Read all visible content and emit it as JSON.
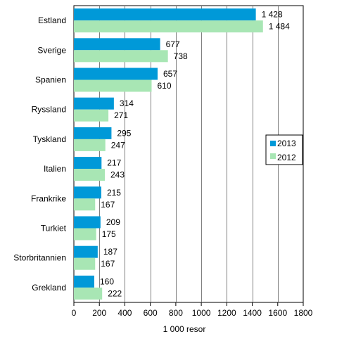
{
  "chart_data": {
    "type": "bar",
    "orientation": "horizontal",
    "categories": [
      "Estland",
      "Sverige",
      "Spanien",
      "Ryssland",
      "Tyskland",
      "Italien",
      "Frankrike",
      "Turkiet",
      "Storbritannien",
      "Grekland"
    ],
    "series": [
      {
        "name": "2013",
        "color": "#0099d8",
        "values": [
          1428,
          677,
          657,
          314,
          295,
          217,
          215,
          209,
          187,
          160
        ],
        "labels": [
          "1 428",
          "677",
          "657",
          "314",
          "295",
          "217",
          "215",
          "209",
          "187",
          "160"
        ]
      },
      {
        "name": "2012",
        "color": "#a8e6b4",
        "values": [
          1484,
          738,
          610,
          271,
          247,
          243,
          167,
          175,
          167,
          222
        ],
        "labels": [
          "1 484",
          "738",
          "610",
          "271",
          "247",
          "243",
          "167",
          "175",
          "167",
          "222"
        ]
      }
    ],
    "xlabel": "1 000 resor",
    "xlim": [
      0,
      1800
    ],
    "xticks": [
      0,
      200,
      400,
      600,
      800,
      1000,
      1200,
      1400,
      1600,
      1800
    ],
    "xtick_labels": [
      "0",
      "200",
      "400",
      "600",
      "800",
      "1000",
      "1200",
      "1400",
      "1600",
      "1800"
    ],
    "grid": "vertical",
    "legend_position": "right"
  }
}
